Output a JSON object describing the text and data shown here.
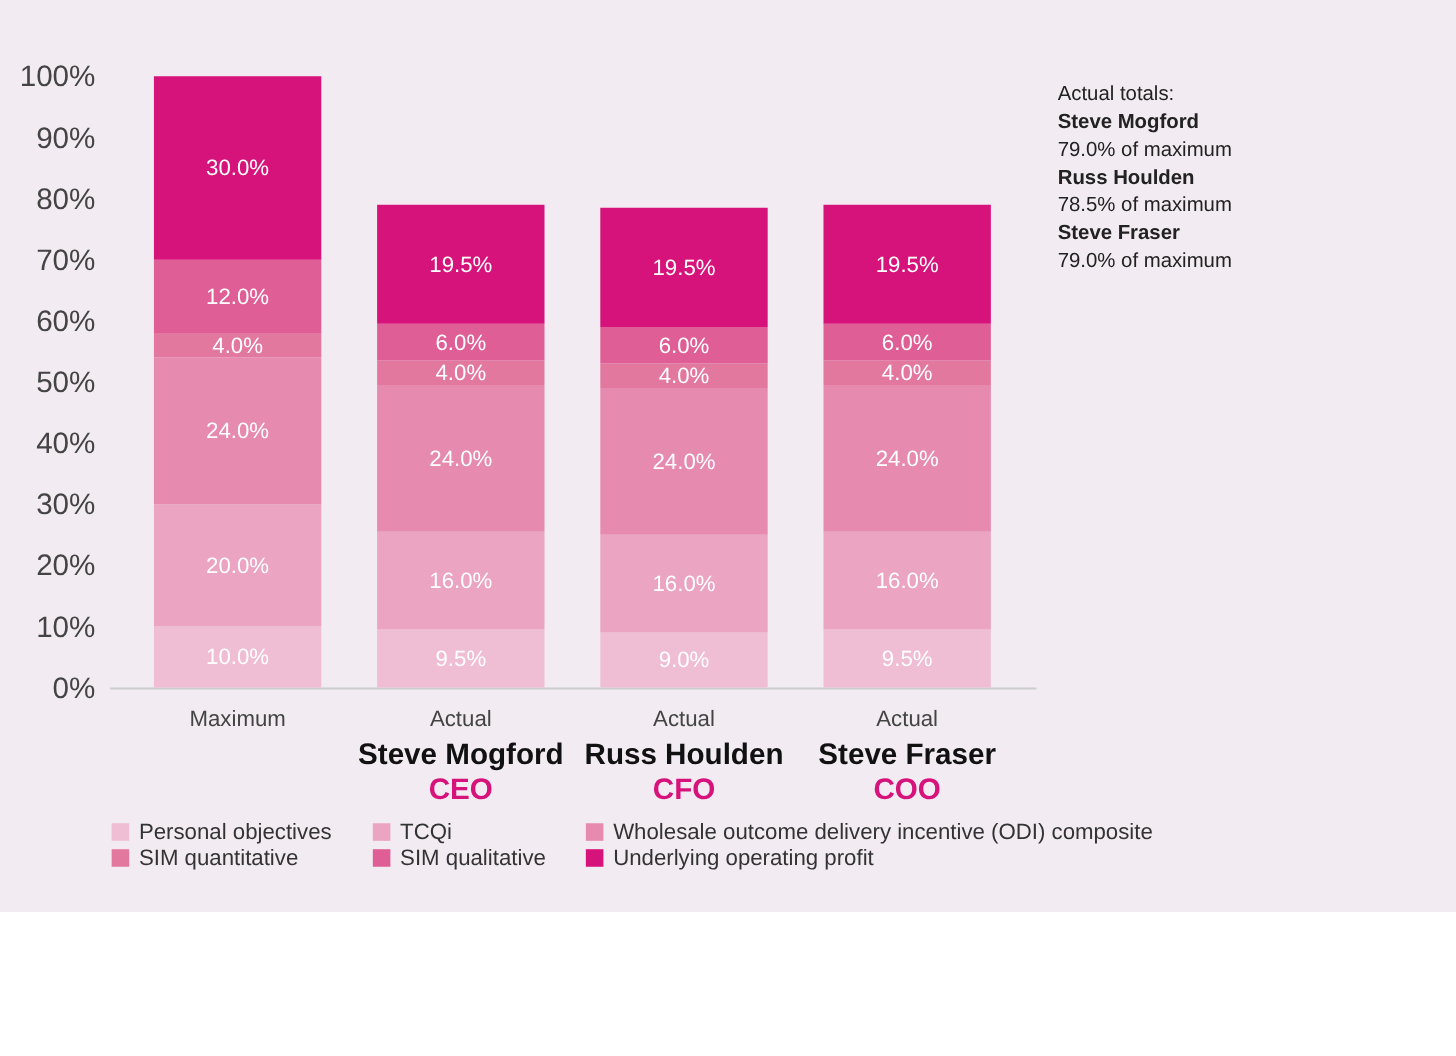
{
  "chart_data": {
    "type": "bar",
    "stacked": true,
    "categories": [
      "Maximum",
      "Actual\nSteve Mogford\nCEO",
      "Actual\nRuss Houlden\nCFO",
      "Actual\nSteve Fraser\nCOO"
    ],
    "series": [
      {
        "name": "Personal objectives",
        "color": "#f0bed4",
        "values": [
          10,
          9.5,
          9,
          9.5
        ],
        "value_labels": [
          "10.0%",
          "9.5%",
          "9.0%",
          "9.5%"
        ]
      },
      {
        "name": "TCQi",
        "color": "#eba4c2",
        "values": [
          20,
          16,
          16,
          16
        ],
        "value_labels": [
          "20.0%",
          "16.0%",
          "16.0%",
          "16.0%"
        ]
      },
      {
        "name": "Wholesale outcome delivery incentive (ODI) composite",
        "color": "#e68aaf",
        "values": [
          24,
          24,
          24,
          24
        ],
        "value_labels": [
          "24.0%",
          "24.0%",
          "24.0%",
          "24.0%"
        ]
      },
      {
        "name": "SIM quantitative",
        "color": "#e3789f",
        "values": [
          4,
          4,
          4,
          4
        ],
        "value_labels": [
          "4.0%",
          "4.0%",
          "4.0%",
          "4.0%"
        ]
      },
      {
        "name": "SIM qualitative",
        "color": "#df5e96",
        "values": [
          12,
          6,
          6,
          6
        ],
        "value_labels": [
          "12.0%",
          "6.0%",
          "6.0%",
          "6.0%"
        ]
      },
      {
        "name": "Underlying operating profit",
        "color": "#d6137b",
        "values": [
          30,
          19.5,
          19.5,
          19.5
        ],
        "value_labels": [
          "30.0%",
          "19.5%",
          "19.5%",
          "19.5%"
        ]
      }
    ],
    "ylim": [
      0,
      100
    ],
    "yticks": [
      {
        "value": 0,
        "label": "0%"
      },
      {
        "value": 10,
        "label": "10%"
      },
      {
        "value": 20,
        "label": "20%"
      },
      {
        "value": 30,
        "label": "30%"
      },
      {
        "value": 40,
        "label": "40%"
      },
      {
        "value": 50,
        "label": "50%"
      },
      {
        "value": 60,
        "label": "60%"
      },
      {
        "value": 70,
        "label": "70%"
      },
      {
        "value": 80,
        "label": "80%"
      },
      {
        "value": 90,
        "label": "90%"
      },
      {
        "value": 100,
        "label": "100%"
      }
    ],
    "grid": false,
    "legend": "bottom",
    "annotations": [
      "Actual totals:",
      "Steve Mogford",
      "79.0% of maximum",
      "Russ Houlden",
      "78.5% of maximum",
      "Steve Fraser",
      "79.0% of maximum"
    ]
  }
}
